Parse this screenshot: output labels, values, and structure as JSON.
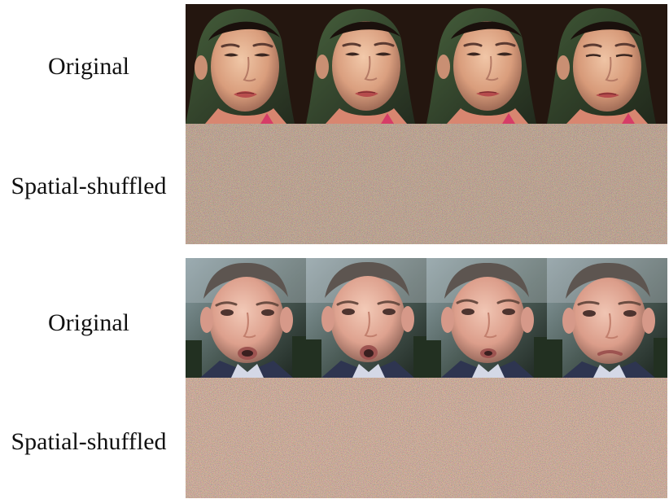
{
  "sections": [
    {
      "original_label": "Original",
      "shuffled_label": "Spatial-shuffled"
    },
    {
      "original_label": "Original",
      "shuffled_label": "Spatial-shuffled"
    }
  ]
}
